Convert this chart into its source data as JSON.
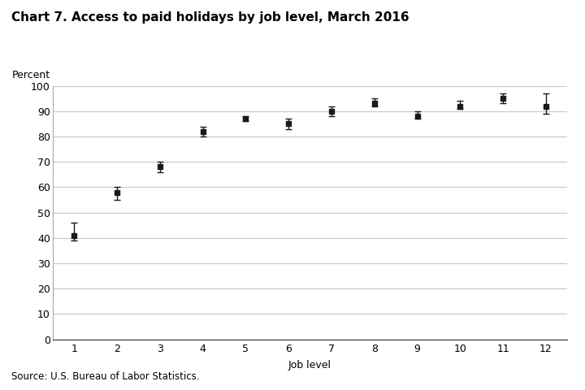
{
  "title": "Chart 7. Access to paid holidays by job level, March 2016",
  "xlabel": "Job level",
  "ylabel": "Percent",
  "source": "Source: U.S. Bureau of Labor Statistics.",
  "x": [
    1,
    2,
    3,
    4,
    5,
    6,
    7,
    8,
    9,
    10,
    11,
    12
  ],
  "y": [
    41,
    58,
    68,
    82,
    87,
    85,
    90,
    93,
    88,
    92,
    95,
    92
  ],
  "y_lower_err": [
    2,
    3,
    2,
    2,
    1,
    2,
    2,
    1,
    1,
    1,
    2,
    3
  ],
  "y_upper_err": [
    5,
    2,
    2,
    2,
    1,
    2,
    2,
    2,
    2,
    2,
    2,
    5
  ],
  "ylim": [
    0,
    100
  ],
  "xlim": [
    0.5,
    12.5
  ],
  "yticks": [
    0,
    10,
    20,
    30,
    40,
    50,
    60,
    70,
    80,
    90,
    100
  ],
  "xticks": [
    1,
    2,
    3,
    4,
    5,
    6,
    7,
    8,
    9,
    10,
    11,
    12
  ],
  "marker_color": "#1a1a1a",
  "marker_size": 5,
  "capsize": 3,
  "elinewidth": 1.0,
  "capthick": 1.0,
  "bg_color": "#ffffff",
  "grid_color": "#c8c8c8",
  "title_fontsize": 11,
  "axis_label_fontsize": 9,
  "tick_fontsize": 9,
  "source_fontsize": 8.5,
  "ylabel_fontsize": 9
}
